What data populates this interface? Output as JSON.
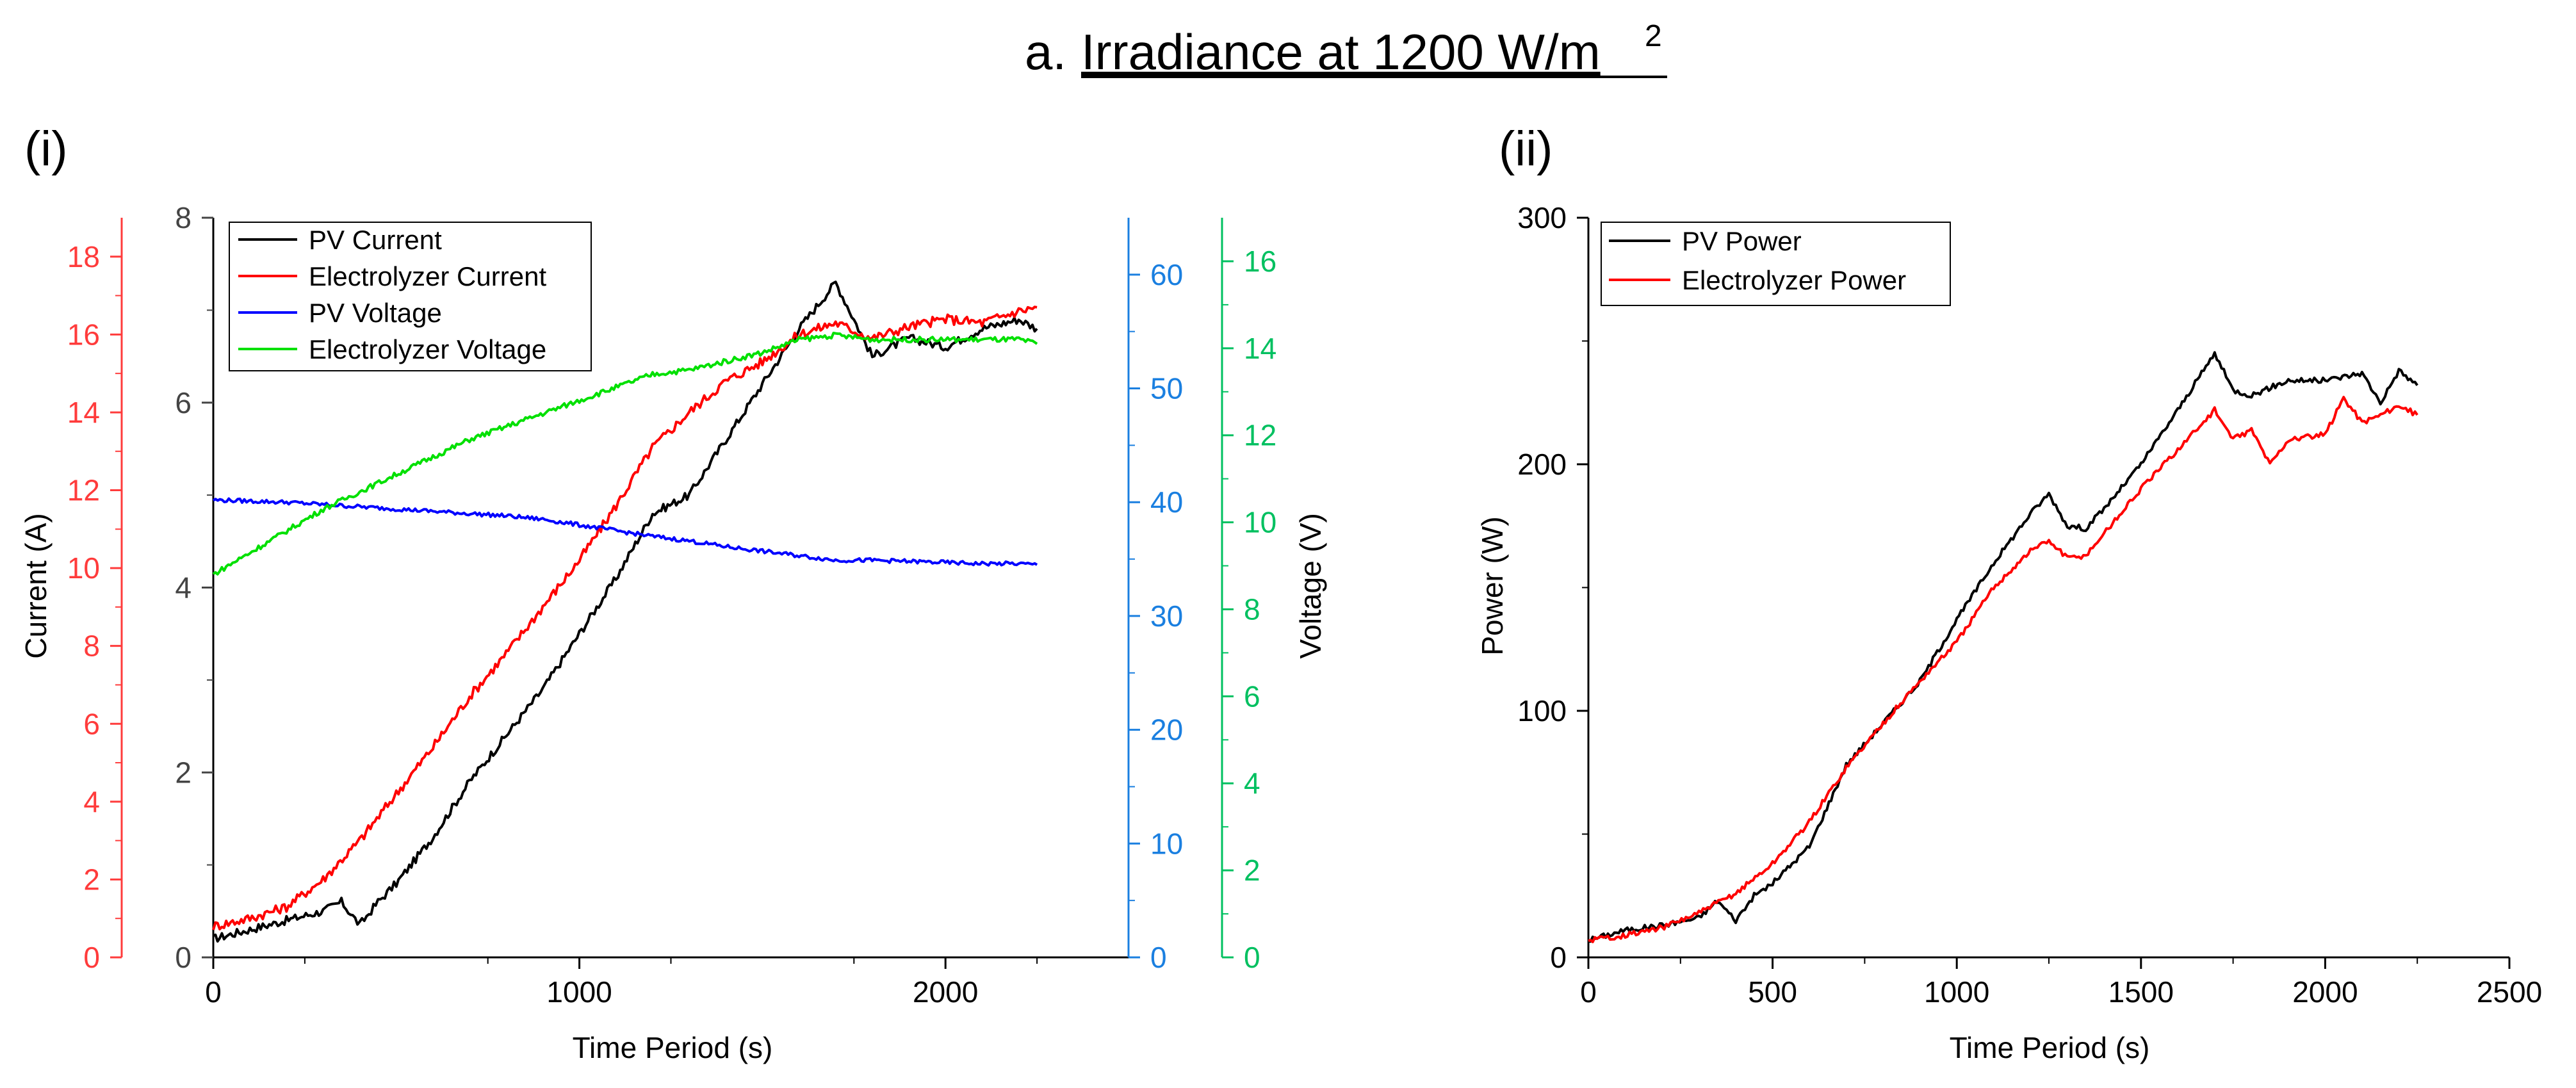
{
  "figure_title": {
    "prefix": "a.",
    "main": "Irradiance at 1200 W/m",
    "superscript": "2"
  },
  "colors": {
    "pv_current": "#000000",
    "electrolyzer_current": "#ff0000",
    "pv_voltage": "#0000ff",
    "electrolyzer_voltage": "#00e000",
    "axis_left_red": "#ff3b3b",
    "axis_blue": "#1a7fe0",
    "axis_green": "#00c060"
  },
  "chart_data": [
    {
      "panel_label": "(i)",
      "type": "line",
      "xlabel": "Time Period (s)",
      "xlim": [
        0,
        2500
      ],
      "xticks": [
        0,
        1000,
        2000
      ],
      "ylabel": "Current (A)",
      "axes": {
        "left_inner": {
          "lim": [
            0,
            8
          ],
          "ticks": [
            0,
            2,
            4,
            6,
            8
          ],
          "tick_labels": [
            "0",
            "2",
            "4",
            "6",
            "8"
          ]
        },
        "left_outer": {
          "lim": [
            0,
            19
          ],
          "ticks": [
            0,
            2,
            4,
            6,
            8,
            10,
            12,
            14,
            16,
            18
          ],
          "tick_labels": [
            "0",
            "2",
            "4",
            "6",
            "8",
            "10",
            "12",
            "14",
            "16",
            "18"
          ]
        },
        "right_blue": {
          "lim": [
            0,
            65
          ],
          "ticks": [
            0,
            10,
            20,
            30,
            40,
            50,
            60
          ],
          "tick_labels": [
            "0",
            "10",
            "20",
            "30",
            "40",
            "50",
            "60"
          ]
        },
        "right_green": {
          "lim": [
            0,
            17
          ],
          "ticks": [
            0,
            2,
            4,
            6,
            8,
            10,
            12,
            14,
            16
          ],
          "tick_labels": [
            "0",
            "2",
            "4",
            "6",
            "8",
            "10",
            "12",
            "14",
            "16"
          ],
          "label": "Voltage (V)"
        }
      },
      "legend_position": "top-left",
      "series": [
        {
          "name": "PV Current",
          "axis": "left_inner",
          "color_key": "pv_current",
          "x": [
            0,
            100,
            200,
            300,
            350,
            400,
            450,
            500,
            600,
            700,
            800,
            900,
            1000,
            1100,
            1200,
            1300,
            1400,
            1500,
            1600,
            1700,
            1750,
            1800,
            1900,
            2000,
            2100,
            2200,
            2250
          ],
          "y": [
            0.2,
            0.3,
            0.4,
            0.5,
            0.6,
            0.35,
            0.6,
            0.8,
            1.3,
            1.9,
            2.4,
            2.9,
            3.5,
            4.1,
            4.8,
            5.0,
            5.6,
            6.2,
            6.8,
            7.3,
            6.9,
            6.5,
            6.7,
            6.6,
            6.8,
            6.9,
            6.8
          ]
        },
        {
          "name": "Electrolyzer Current",
          "axis": "left_outer",
          "color_key": "electrolyzer_current",
          "x": [
            0,
            100,
            200,
            300,
            400,
            500,
            600,
            700,
            800,
            900,
            1000,
            1100,
            1200,
            1300,
            1400,
            1500,
            1600,
            1700,
            1800,
            1900,
            2000,
            2100,
            2200,
            2250
          ],
          "y": [
            0.8,
            1.0,
            1.3,
            2.0,
            3.0,
            4.2,
            5.4,
            6.7,
            7.8,
            9.0,
            10.2,
            11.6,
            13.1,
            14.0,
            14.8,
            15.3,
            16.0,
            16.3,
            15.9,
            16.2,
            16.4,
            16.3,
            16.6,
            16.7
          ]
        },
        {
          "name": "PV Voltage",
          "axis": "right_blue",
          "color_key": "pv_voltage",
          "x": [
            0,
            200,
            400,
            600,
            800,
            900,
            1000,
            1100,
            1200,
            1300,
            1400,
            1500,
            1600,
            1700,
            1800,
            1900,
            2000,
            2100,
            2200,
            2250
          ],
          "y": [
            40.2,
            40.0,
            39.6,
            39.2,
            38.8,
            38.5,
            38.0,
            37.5,
            37.0,
            36.6,
            36.1,
            35.7,
            35.3,
            34.9,
            34.9,
            34.8,
            34.7,
            34.6,
            34.6,
            34.5
          ]
        },
        {
          "name": "Electrolyzer Voltage",
          "axis": "right_green",
          "color_key": "electrolyzer_voltage",
          "x": [
            0,
            100,
            200,
            300,
            400,
            500,
            600,
            700,
            800,
            900,
            1000,
            1100,
            1200,
            1300,
            1400,
            1500,
            1600,
            1700,
            1800,
            1900,
            2000,
            2100,
            2200,
            2250
          ],
          "y": [
            8.8,
            9.3,
            9.8,
            10.3,
            10.7,
            11.1,
            11.5,
            11.9,
            12.2,
            12.5,
            12.8,
            13.1,
            13.4,
            13.5,
            13.7,
            13.9,
            14.2,
            14.3,
            14.2,
            14.2,
            14.2,
            14.2,
            14.2,
            14.1
          ]
        }
      ]
    },
    {
      "panel_label": "(ii)",
      "type": "line",
      "xlabel": "Time Period (s)",
      "ylabel": "Power (W)",
      "xlim": [
        0,
        2500
      ],
      "ylim": [
        0,
        300
      ],
      "xticks": [
        0,
        500,
        1000,
        1500,
        2000,
        2500
      ],
      "yticks": [
        0,
        100,
        200,
        300
      ],
      "legend_position": "top-left",
      "series": [
        {
          "name": "PV Power",
          "color_key": "pv_current",
          "x": [
            0,
            100,
            200,
            300,
            350,
            400,
            450,
            500,
            600,
            700,
            800,
            900,
            1000,
            1100,
            1200,
            1250,
            1300,
            1350,
            1400,
            1500,
            1600,
            1700,
            1750,
            1800,
            1900,
            2000,
            2100,
            2150,
            2200,
            2250
          ],
          "y": [
            7,
            11,
            13,
            16,
            23,
            15,
            25,
            30,
            45,
            78,
            95,
            112,
            137,
            160,
            180,
            188,
            175,
            174,
            182,
            200,
            222,
            245,
            230,
            228,
            234,
            234,
            237,
            225,
            238,
            232
          ]
        },
        {
          "name": "Electrolyzer Power",
          "color_key": "electrolyzer_current",
          "x": [
            0,
            100,
            200,
            300,
            400,
            500,
            600,
            700,
            800,
            900,
            1000,
            1100,
            1200,
            1250,
            1300,
            1350,
            1400,
            1500,
            1600,
            1700,
            1750,
            1800,
            1850,
            1900,
            2000,
            2050,
            2100,
            2150,
            2200,
            2250
          ],
          "y": [
            7,
            9,
            12,
            18,
            26,
            38,
            55,
            77,
            95,
            112,
            128,
            150,
            165,
            169,
            162,
            163,
            172,
            190,
            206,
            222,
            210,
            214,
            200,
            210,
            212,
            227,
            217,
            220,
            224,
            220
          ]
        }
      ]
    }
  ]
}
